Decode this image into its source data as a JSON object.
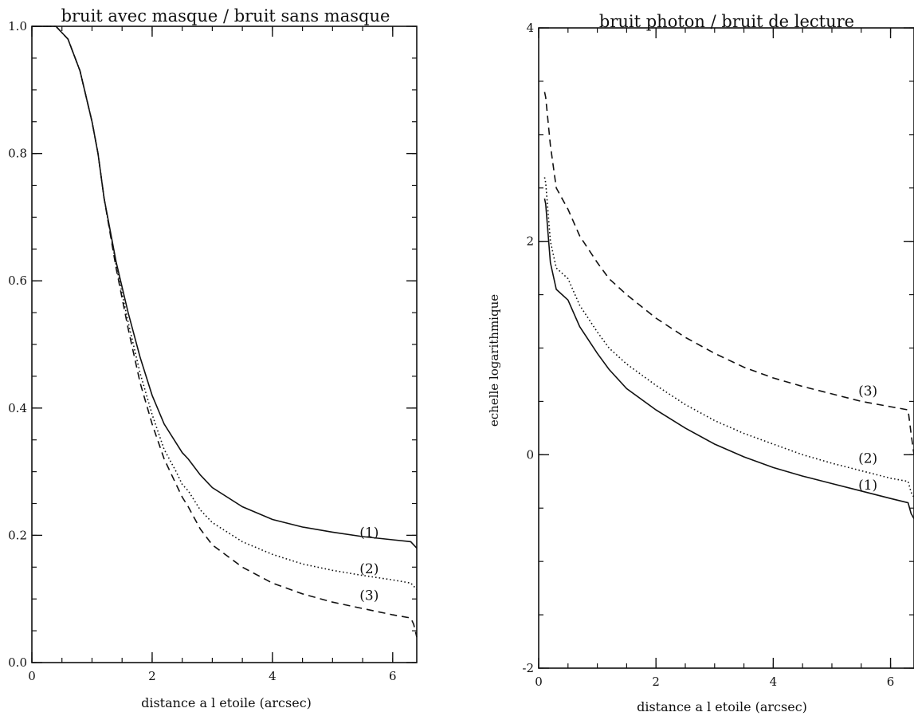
{
  "chart_data": [
    {
      "type": "line",
      "title": "bruit avec masque / bruit sans masque",
      "xlabel": "distance a l etoile (arcsec)",
      "ylabel": "",
      "xlim": [
        0,
        6.4
      ],
      "ylim": [
        0,
        1.0
      ],
      "xticks": [
        0,
        2,
        4,
        6
      ],
      "xtick_labels": [
        "0",
        "2",
        "4",
        "6"
      ],
      "yticks": [
        0,
        0.2,
        0.4,
        0.6,
        0.8,
        1.0
      ],
      "ytick_labels": [
        "0.0",
        "0.2",
        "0.4",
        "0.6",
        "0.8",
        "1.0"
      ],
      "x_minor_step": 0.5,
      "y_minor_step": 0.05,
      "grid": false,
      "series": [
        {
          "name": "(1)",
          "style": "solid",
          "x": [
            0,
            0.2,
            0.4,
            0.6,
            0.8,
            1.0,
            1.1,
            1.2,
            1.4,
            1.6,
            1.8,
            2.0,
            2.2,
            2.4,
            2.5,
            2.6,
            2.8,
            3.0,
            3.5,
            4.0,
            4.5,
            5.0,
            5.5,
            6.0,
            6.3,
            6.35,
            6.4
          ],
          "y": [
            1.0,
            1.0,
            1.0,
            0.98,
            0.93,
            0.85,
            0.8,
            0.73,
            0.63,
            0.55,
            0.48,
            0.42,
            0.375,
            0.345,
            0.33,
            0.32,
            0.295,
            0.275,
            0.245,
            0.225,
            0.213,
            0.205,
            0.198,
            0.193,
            0.19,
            0.185,
            0.18
          ],
          "label": "(1)",
          "label_at": [
            5.45,
            0.205
          ]
        },
        {
          "name": "(2)",
          "style": "dotted",
          "x": [
            0,
            0.2,
            0.4,
            0.6,
            0.8,
            1.0,
            1.1,
            1.2,
            1.4,
            1.6,
            1.8,
            2.0,
            2.2,
            2.4,
            2.5,
            2.6,
            2.8,
            3.0,
            3.5,
            4.0,
            4.5,
            5.0,
            5.5,
            6.0,
            6.3,
            6.35,
            6.4
          ],
          "y": [
            1.0,
            1.0,
            1.0,
            0.98,
            0.93,
            0.85,
            0.8,
            0.73,
            0.625,
            0.535,
            0.455,
            0.39,
            0.335,
            0.3,
            0.28,
            0.27,
            0.24,
            0.22,
            0.19,
            0.17,
            0.155,
            0.145,
            0.137,
            0.13,
            0.125,
            0.12,
            0.115
          ],
          "label": "(2)",
          "label_at": [
            5.45,
            0.148
          ]
        },
        {
          "name": "(3)",
          "style": "dashed",
          "x": [
            0,
            0.2,
            0.4,
            0.6,
            0.8,
            1.0,
            1.1,
            1.2,
            1.4,
            1.6,
            1.8,
            2.0,
            2.2,
            2.4,
            2.5,
            2.6,
            2.8,
            3.0,
            3.5,
            4.0,
            4.5,
            5.0,
            5.5,
            6.0,
            6.3,
            6.35,
            6.4
          ],
          "y": [
            1.0,
            1.0,
            1.0,
            0.98,
            0.93,
            0.85,
            0.8,
            0.73,
            0.62,
            0.525,
            0.44,
            0.375,
            0.32,
            0.28,
            0.26,
            0.245,
            0.21,
            0.185,
            0.15,
            0.125,
            0.108,
            0.095,
            0.085,
            0.075,
            0.07,
            0.06,
            0.04
          ],
          "label": "(3)",
          "label_at": [
            5.45,
            0.106
          ]
        }
      ]
    },
    {
      "type": "line",
      "title": "bruit photon / bruit de lecture",
      "xlabel": "distance a l etoile (arcsec)",
      "ylabel": "echelle logarithmique",
      "xlim": [
        0,
        6.4
      ],
      "ylim": [
        -2,
        4
      ],
      "xticks": [
        0,
        2,
        4,
        6
      ],
      "xtick_labels": [
        "0",
        "2",
        "4",
        "6"
      ],
      "yticks": [
        -2,
        0,
        2,
        4
      ],
      "ytick_labels": [
        "-2",
        "0",
        "2",
        "4"
      ],
      "x_minor_step": 0.5,
      "y_minor_step": 0.5,
      "grid": false,
      "series": [
        {
          "name": "(1)",
          "style": "solid",
          "x": [
            0.1,
            0.12,
            0.2,
            0.3,
            0.5,
            0.7,
            1.0,
            1.2,
            1.5,
            2.0,
            2.5,
            3.0,
            3.5,
            4.0,
            4.5,
            5.0,
            5.5,
            6.0,
            6.3,
            6.35,
            6.4
          ],
          "y": [
            2.4,
            2.35,
            1.8,
            1.55,
            1.45,
            1.2,
            0.95,
            0.8,
            0.62,
            0.42,
            0.25,
            0.1,
            -0.02,
            -0.12,
            -0.2,
            -0.27,
            -0.34,
            -0.41,
            -0.45,
            -0.55,
            -0.6
          ],
          "label": "(1)",
          "label_at": [
            5.45,
            -0.28
          ]
        },
        {
          "name": "(2)",
          "style": "dotted",
          "x": [
            0.1,
            0.12,
            0.2,
            0.3,
            0.5,
            0.7,
            1.0,
            1.2,
            1.5,
            2.0,
            2.5,
            3.0,
            3.5,
            4.0,
            4.5,
            5.0,
            5.5,
            6.0,
            6.3,
            6.35,
            6.4
          ],
          "y": [
            2.6,
            2.55,
            2.0,
            1.75,
            1.65,
            1.4,
            1.15,
            1.0,
            0.85,
            0.65,
            0.47,
            0.32,
            0.2,
            0.1,
            0.0,
            -0.08,
            -0.15,
            -0.22,
            -0.25,
            -0.35,
            -0.4
          ],
          "label": "(2)",
          "label_at": [
            5.45,
            -0.03
          ]
        },
        {
          "name": "(3)",
          "style": "dashed",
          "x": [
            0.1,
            0.12,
            0.2,
            0.3,
            0.5,
            0.7,
            1.0,
            1.2,
            1.5,
            2.0,
            2.5,
            3.0,
            3.5,
            4.0,
            4.5,
            5.0,
            5.5,
            6.0,
            6.3,
            6.35,
            6.4
          ],
          "y": [
            3.4,
            3.35,
            2.9,
            2.5,
            2.3,
            2.05,
            1.8,
            1.65,
            1.5,
            1.28,
            1.1,
            0.95,
            0.82,
            0.72,
            0.64,
            0.57,
            0.5,
            0.45,
            0.42,
            0.2,
            0.0
          ],
          "label": "(3)",
          "label_at": [
            5.45,
            0.6
          ]
        }
      ]
    }
  ]
}
